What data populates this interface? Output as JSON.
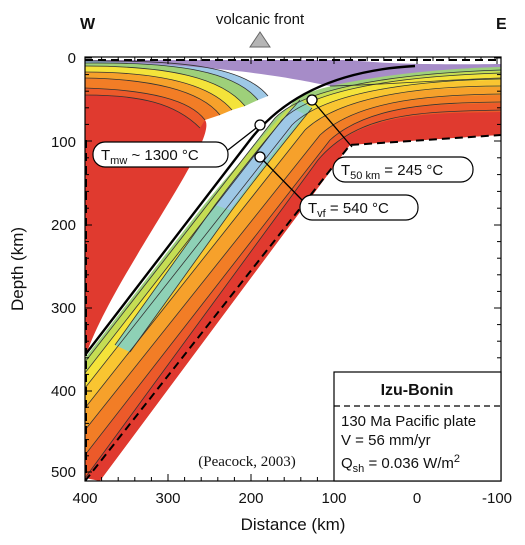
{
  "figure": {
    "west_label": "W",
    "east_label": "E",
    "volcanic_front_label": "volcanic front",
    "citation": "(Peacock, 2003)"
  },
  "axes": {
    "x": {
      "label": "Distance (km)",
      "ticks": [
        "400",
        "300",
        "200",
        "100",
        "0",
        "-100"
      ],
      "range_km": [
        400,
        -100
      ]
    },
    "y": {
      "label": "Depth (km)",
      "ticks": [
        "0",
        "100",
        "200",
        "300",
        "400",
        "500"
      ],
      "range_km": [
        0,
        510
      ]
    }
  },
  "legend_box": {
    "title": "Izu-Bonin",
    "line1": "130 Ma Pacific plate",
    "line2": "V = 56 mm/yr",
    "line3_prefix": "Q",
    "line3_sub": "sh",
    "line3_value": " = 0.036 W/m",
    "line3_sup": "2"
  },
  "callouts": {
    "mantle_wedge": {
      "prefix": "T",
      "sub": "mw",
      "value": " ~ 1300 °C"
    },
    "slab_50km": {
      "prefix": "T",
      "sub": "50 km",
      "value": " = 245 °C"
    },
    "volcanic_front": {
      "prefix": "T",
      "sub": "vf",
      "value": " = 540 °C"
    }
  },
  "colors": {
    "hot": "#e03a2f",
    "orange_red": "#ec5a2a",
    "orange": "#f27d26",
    "light_orange": "#f6a12b",
    "yellow_orange": "#f9c531",
    "yellow": "#f4e33a",
    "yellow_green": "#c5dd53",
    "green": "#9ed07a",
    "teal": "#8ed1b6",
    "light_blue": "#9ec8e6",
    "purple": "#a68cc8"
  }
}
